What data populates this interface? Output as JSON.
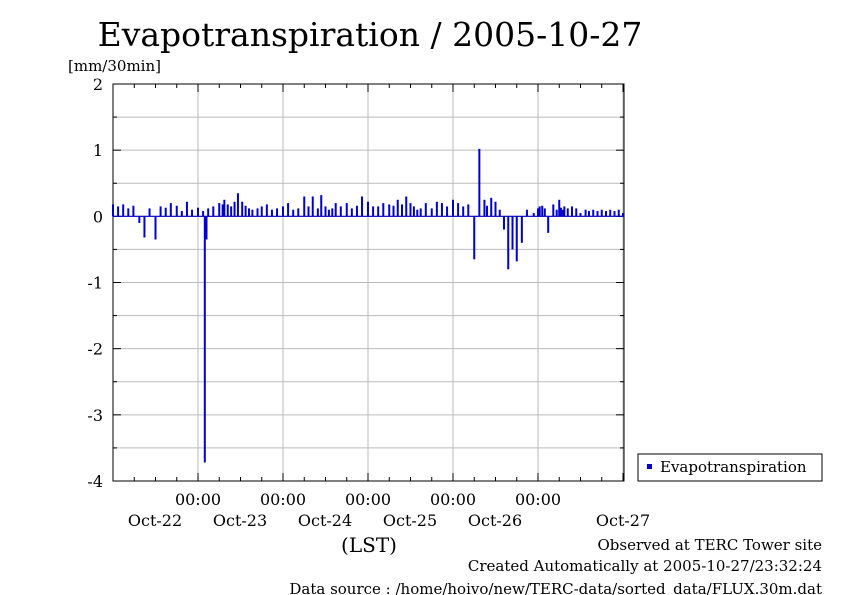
{
  "chart_data": {
    "type": "bar",
    "title": "Evapotranspiration / 2005-10-27",
    "ylabel": "[mm/30min]",
    "xlabel": "(LST)",
    "ylim": [
      -4,
      2
    ],
    "yticks": [
      "2",
      "1",
      "0",
      "-1",
      "-2",
      "-3",
      "-4"
    ],
    "xticks": [
      {
        "time": "00:00",
        "date": "Oct-22",
        "day": 22
      },
      {
        "time": "00:00",
        "date": "Oct-23",
        "day": 23
      },
      {
        "time": "00:00",
        "date": "Oct-24",
        "day": 24
      },
      {
        "time": "00:00",
        "date": "Oct-25",
        "day": 25
      },
      {
        "time": "00:00",
        "date": "Oct-26",
        "day": 26
      },
      {
        "time": "",
        "date": "Oct-27",
        "day": 27
      }
    ],
    "grid": true,
    "color": "#0000cc",
    "legend": {
      "position": "right",
      "entries": [
        "Evapotranspiration"
      ]
    },
    "series": [
      {
        "name": "Evapotranspiration",
        "x_days": [
          21.0,
          21.06,
          21.12,
          21.18,
          21.24,
          21.31,
          21.37,
          21.43,
          21.5,
          21.56,
          21.62,
          21.68,
          21.75,
          21.81,
          21.87,
          21.93,
          22.0,
          22.06,
          22.08,
          22.1,
          22.12,
          22.18,
          22.25,
          22.29,
          22.31,
          22.35,
          22.39,
          22.43,
          22.47,
          22.52,
          22.56,
          22.6,
          22.64,
          22.7,
          22.75,
          22.81,
          22.87,
          22.93,
          23.0,
          23.06,
          23.12,
          23.18,
          23.25,
          23.3,
          23.35,
          23.41,
          23.45,
          23.5,
          23.54,
          23.58,
          23.62,
          23.68,
          23.75,
          23.81,
          23.87,
          23.93,
          24.0,
          24.06,
          24.12,
          24.18,
          24.25,
          24.3,
          24.35,
          24.4,
          24.45,
          24.5,
          24.54,
          24.58,
          24.62,
          24.68,
          24.75,
          24.81,
          24.87,
          24.93,
          25.0,
          25.06,
          25.12,
          25.18,
          25.25,
          25.31,
          25.37,
          25.4,
          25.45,
          25.5,
          25.55,
          25.6,
          25.65,
          25.7,
          25.75,
          25.81,
          25.87,
          25.95,
          26.0,
          26.02,
          26.05,
          26.08,
          26.12,
          26.18,
          26.22,
          26.25,
          26.27,
          26.29,
          26.31,
          26.35,
          26.4,
          26.45,
          26.5,
          26.56,
          26.6,
          26.65,
          26.7,
          26.75,
          26.8,
          26.85,
          26.9,
          26.95,
          27.0
        ],
        "values": [
          0.18,
          0.15,
          0.18,
          0.12,
          0.16,
          -0.1,
          -0.32,
          0.12,
          -0.35,
          0.15,
          0.13,
          0.2,
          0.16,
          0.08,
          0.22,
          0.1,
          0.13,
          0.08,
          -3.72,
          -0.35,
          0.12,
          0.15,
          0.2,
          0.18,
          0.25,
          0.18,
          0.15,
          0.22,
          0.35,
          0.22,
          0.16,
          0.12,
          0.1,
          0.12,
          0.15,
          0.18,
          0.1,
          0.12,
          0.15,
          0.2,
          0.1,
          0.12,
          0.3,
          0.15,
          0.3,
          0.12,
          0.32,
          0.15,
          0.1,
          0.12,
          0.2,
          0.15,
          0.2,
          0.12,
          0.16,
          0.3,
          0.22,
          0.15,
          0.15,
          0.2,
          0.18,
          0.16,
          0.25,
          0.18,
          0.3,
          0.2,
          0.15,
          0.1,
          0.12,
          0.2,
          0.12,
          0.22,
          0.2,
          0.15,
          0.25,
          0.2,
          0.15,
          0.18,
          -0.65,
          1.02,
          0.25,
          0.16,
          0.28,
          0.22,
          0.1,
          -0.2,
          -0.8,
          -0.5,
          -0.68,
          -0.4,
          0.1,
          0.05,
          0.12,
          0.15,
          0.16,
          0.12,
          -0.25,
          0.18,
          0.1,
          0.25,
          0.13,
          0.1,
          0.15,
          0.12,
          0.15,
          0.12,
          0.05,
          0.1,
          0.08,
          0.1,
          0.08,
          0.1,
          0.08,
          0.1,
          0.08,
          0.1,
          0.05
        ]
      }
    ]
  },
  "footer": {
    "line1": "Observed at TERC Tower site",
    "line2": "Created Automatically at 2005-10-27/23:32:24",
    "line3": "Data source : /home/hoivo/new/TERC-data/sorted_data/FLUX.30m.dat"
  }
}
